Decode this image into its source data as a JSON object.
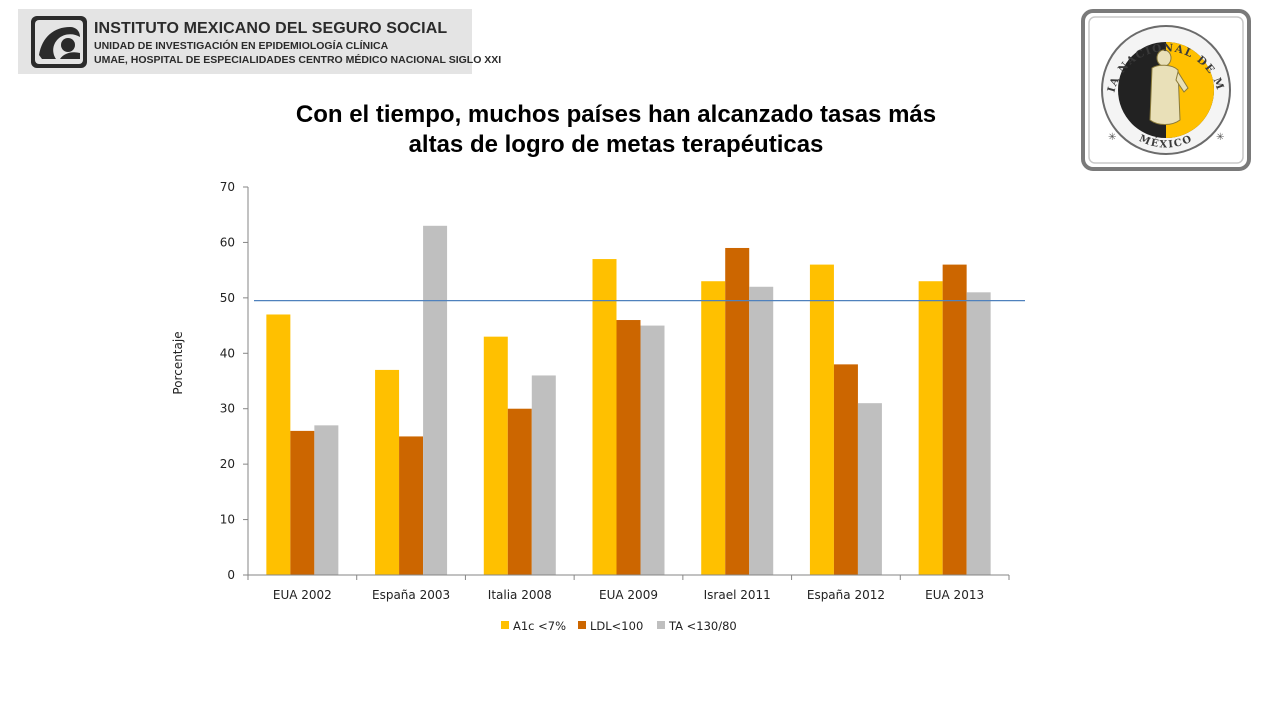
{
  "header": {
    "institution": "INSTITUTO MEXICANO DEL SEGURO SOCIAL",
    "unit": "UNIDAD DE INVESTIGACIÓN EN EPIDEMIOLOGÍA CLÍNICA",
    "hospital": "UMAE, HOSPITAL DE ESPECIALIDADES CENTRO MÉDICO NACIONAL SIGLO XXI"
  },
  "seal": {
    "text_top": "ACADEMIA NACIONAL DE MEDICINA",
    "text_bottom": "MÉXICO"
  },
  "slide": {
    "title_line1": "Con el tiempo, muchos países han alcanzado tasas más",
    "title_line2": "altas de logro de metas terapéuticas"
  },
  "colors": {
    "a1c": "#FFC000",
    "ldl": "#CC6600",
    "ta": "#BFBFBF",
    "reference_line": "#4F81BD"
  },
  "chart_data": {
    "type": "bar",
    "title": "",
    "xlabel": "",
    "ylabel": "Porcentaje",
    "ylim": [
      0,
      70
    ],
    "yticks": [
      0,
      10,
      20,
      30,
      40,
      50,
      60,
      70
    ],
    "grid": false,
    "legend_position": "bottom",
    "categories": [
      "EUA 2002",
      "España 2003",
      "Italia 2008",
      "EUA 2009",
      "Israel 2011",
      "España 2012",
      "EUA 2013"
    ],
    "series": [
      {
        "name": "A1c <7%",
        "values": [
          47,
          37,
          43,
          57,
          53,
          56,
          53
        ]
      },
      {
        "name": "LDL<100",
        "values": [
          26,
          25,
          30,
          46,
          59,
          38,
          56
        ]
      },
      {
        "name": "TA <130/80",
        "values": [
          27,
          63,
          36,
          45,
          52,
          31,
          51
        ]
      }
    ],
    "reference_line": {
      "y": 49.5
    }
  }
}
